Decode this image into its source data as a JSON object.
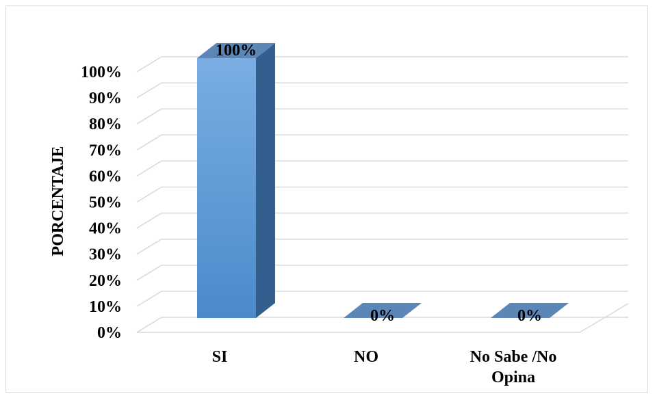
{
  "chart_data": {
    "type": "bar",
    "style": "3d-column",
    "categories": [
      "SI",
      "NO",
      "No Sabe /No Opina"
    ],
    "category_lines": [
      [
        "SI"
      ],
      [
        "NO"
      ],
      [
        "No Sabe /No",
        "Opina"
      ]
    ],
    "values": [
      100,
      0,
      0
    ],
    "data_labels": [
      "100%",
      "0%",
      "0%"
    ],
    "ylabel": "PORCENTAJE",
    "xlabel": "",
    "ylim": [
      0,
      100
    ],
    "y_ticks": [
      0,
      10,
      20,
      30,
      40,
      50,
      60,
      70,
      80,
      90,
      100
    ],
    "y_tick_labels": [
      "0%",
      "10%",
      "20%",
      "30%",
      "40%",
      "50%",
      "60%",
      "70%",
      "80%",
      "90%",
      "100%"
    ],
    "grid": true,
    "legend": "none",
    "colors": {
      "bar_front_top": "#7aaee3",
      "bar_front_bottom": "#4a8acb",
      "bar_side": "#335f8f",
      "bar_top": "#5b86b6",
      "grid": "#d9d9d9"
    }
  }
}
